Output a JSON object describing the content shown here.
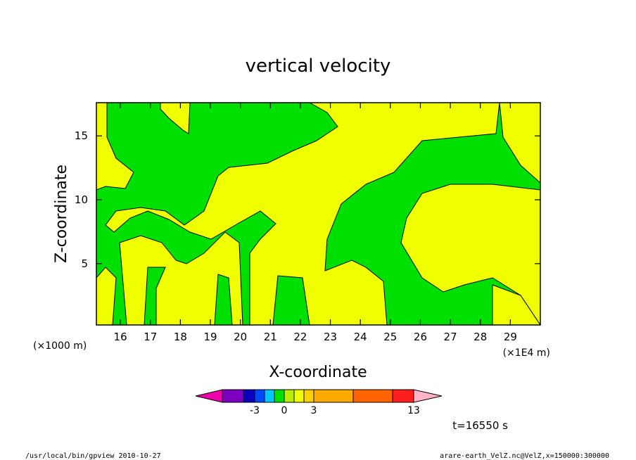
{
  "chart_data": {
    "type": "contour",
    "title": "vertical velocity",
    "xlabel": "X-coordinate",
    "ylabel": "Z-coordinate",
    "x_scale_note": "(×1E4 m)",
    "y_scale_note": "(×1000 m)",
    "xlim": [
      15.2,
      30.0
    ],
    "ylim": [
      0.2,
      17.6
    ],
    "x_ticks": [
      16,
      17,
      18,
      19,
      20,
      21,
      22,
      23,
      24,
      25,
      26,
      27,
      28,
      29
    ],
    "y_ticks": [
      5,
      10,
      15
    ],
    "fill_colors": {
      "positive_0_to_1": "#f0ff00",
      "negative_-1_to_0": "#00e000"
    },
    "colorbar": {
      "colors": [
        "#ee00aa",
        "#7d00c0",
        "#0a00c0",
        "#0048ff",
        "#00c8ff",
        "#00e000",
        "#b8f000",
        "#f0ff00",
        "#ffd000",
        "#ffaa00",
        "#ff6400",
        "#ff1e1e",
        "#ff7878",
        "#ffb4c8"
      ],
      "labels": [
        "-3",
        "0",
        "3",
        "13"
      ]
    },
    "time_label": "t=16550 s"
  },
  "footer": {
    "left": "/usr/local/bin/gpview  2010-10-27",
    "right": "arare-earth_VelZ.nc@VelZ,x=150000:300000"
  }
}
